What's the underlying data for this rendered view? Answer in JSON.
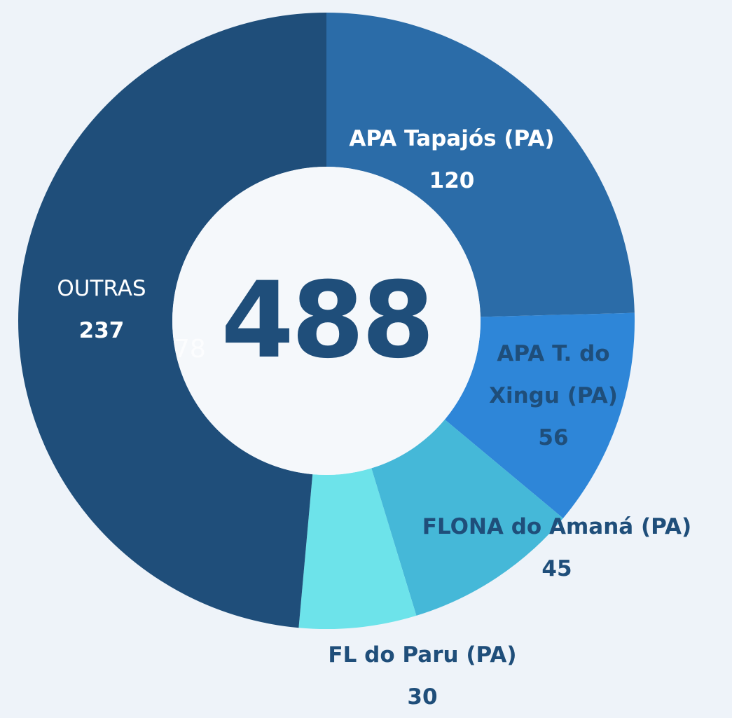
{
  "chart_data": {
    "type": "donut",
    "categories": [
      "APA Tapajós (PA)",
      "APA T. do Xingu (PA)",
      "FLONA do Amaná (PA)",
      "FL do Paru (PA)",
      "OUTRAS"
    ],
    "values": [
      120,
      56,
      45,
      30,
      237
    ],
    "colors": [
      "#2b6ca8",
      "#2e86d8",
      "#45b8d8",
      "#6de3ea",
      "#1f4e7a"
    ],
    "total": 488,
    "annotation": "78"
  }
}
